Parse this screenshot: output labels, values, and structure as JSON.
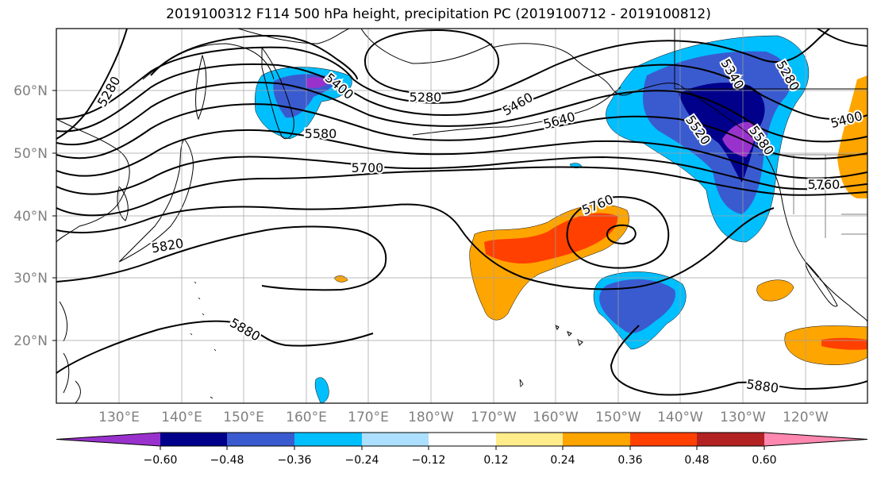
{
  "title": "2019100312 F114 500 hPa height, precipitation PC (2019100712 - 2019100812)",
  "map": {
    "lon_labels": [
      "130°E",
      "140°E",
      "150°E",
      "160°E",
      "170°E",
      "180°W",
      "170°W",
      "160°W",
      "150°W",
      "140°W",
      "130°W",
      "120°W"
    ],
    "lat_labels": [
      "60°N",
      "50°N",
      "40°N",
      "30°N",
      "20°N"
    ],
    "contour_labels": [
      "5280",
      "5280",
      "5340",
      "5280",
      "5400",
      "5580",
      "5700",
      "5760",
      "5820",
      "5880",
      "5880",
      "5400",
      "5460",
      "5520",
      "5580",
      "5640",
      "5760"
    ]
  },
  "colorbar": {
    "colors": [
      "#9932CC",
      "#00008B",
      "#3A5BD0",
      "#00BFFF",
      "#ADDFFF",
      "#FFFFFF",
      "#FFEC8B",
      "#FFA500",
      "#FF4000",
      "#B22222",
      "#FF88B0"
    ],
    "tick_labels": [
      "−0.60",
      "−0.48",
      "−0.36",
      "−0.24",
      "−0.12",
      "0.12",
      "0.24",
      "0.36",
      "0.48",
      "0.60"
    ]
  }
}
